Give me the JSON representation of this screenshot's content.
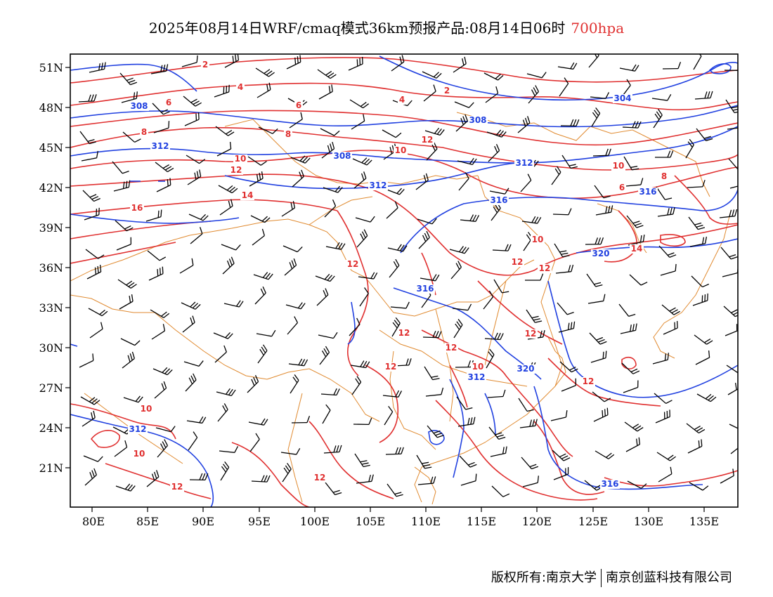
{
  "title": {
    "main": "2025年08月14日WRF/cmaq模式36km预报产品:08月14日06时",
    "level": "700hpa",
    "level_color": "#e03030"
  },
  "axes": {
    "lat_labels": [
      "51N",
      "48N",
      "45N",
      "42N",
      "39N",
      "36N",
      "33N",
      "30N",
      "27N",
      "24N",
      "21N"
    ],
    "lon_labels": [
      "80E",
      "85E",
      "90E",
      "95E",
      "100E",
      "105E",
      "110E",
      "115E",
      "120E",
      "125E",
      "130E",
      "135E"
    ]
  },
  "legend_colors": {
    "temperature": "#e03030",
    "geopotential_height": "#2040e0",
    "borders": "#e08a30",
    "wind": "#000000"
  },
  "contour_labels": {
    "temperature": [
      "2",
      "4",
      "6",
      "8",
      "10",
      "12",
      "14",
      "16",
      "2",
      "4",
      "6",
      "8",
      "10",
      "12",
      "10",
      "8",
      "6",
      "10",
      "12",
      "14",
      "12",
      "12",
      "12",
      "12",
      "12",
      "10",
      "10",
      "10",
      "12",
      "12",
      "12",
      "12"
    ],
    "height": [
      "308",
      "312",
      "308",
      "312",
      "316",
      "312",
      "308",
      "304",
      "316",
      "320",
      "316",
      "320",
      "316",
      "312",
      "312"
    ]
  },
  "footer": {
    "left": "版权所有:南京大学",
    "right": "南京创蓝科技有限公司"
  }
}
